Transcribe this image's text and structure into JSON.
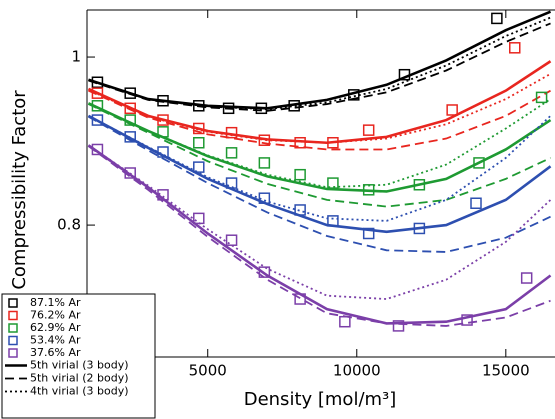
{
  "chart_data": {
    "type": "line",
    "x_label": "Density [mol/m³]",
    "y_label": "Compressibility Factor",
    "xlim": [
      950,
      16650
    ],
    "ylim": [
      0.643,
      1.056
    ],
    "xticks": [
      5000,
      10000,
      15000
    ],
    "yticks": [
      0.8,
      1
    ],
    "x": [
      1000,
      3000,
      5000,
      7000,
      9000,
      11000,
      13000,
      15000,
      16500
    ],
    "models": [
      {
        "name": "5th virial (3 body)",
        "dash": "solid"
      },
      {
        "name": "5th virial (2 body)",
        "dash": "dashed"
      },
      {
        "name": "4th virial (3 body)",
        "dash": "dotted"
      }
    ],
    "series": [
      {
        "name": "87.1% Ar",
        "color": "#000000",
        "marker_x": [
          1300,
          2400,
          3500,
          4700,
          5700,
          6800,
          7900,
          9900,
          11600,
          14700
        ],
        "marker_values": [
          0.97,
          0.957,
          0.948,
          0.942,
          0.939,
          0.939,
          0.942,
          0.955,
          0.979,
          1.046
        ],
        "curves": [
          [
            0.973,
            0.95,
            0.942,
            0.939,
            0.949,
            0.967,
            0.996,
            1.032,
            1.054
          ],
          [
            0.972,
            0.949,
            0.94,
            0.936,
            0.944,
            0.958,
            0.984,
            1.018,
            1.04
          ],
          [
            0.973,
            0.95,
            0.941,
            0.938,
            0.946,
            0.962,
            0.99,
            1.025,
            1.047
          ]
        ]
      },
      {
        "name": "76.2% Ar",
        "color": "#e8261f",
        "marker_x": [
          1300,
          2400,
          3500,
          4700,
          5800,
          6900,
          8100,
          9200,
          10400,
          13200,
          15300
        ],
        "marker_values": [
          0.957,
          0.939,
          0.925,
          0.915,
          0.91,
          0.901,
          0.898,
          0.898,
          0.913,
          0.937,
          1.011
        ],
        "curves": [
          [
            0.962,
            0.93,
            0.912,
            0.902,
            0.898,
            0.905,
            0.925,
            0.96,
            0.995
          ],
          [
            0.96,
            0.928,
            0.908,
            0.897,
            0.89,
            0.89,
            0.903,
            0.93,
            0.96
          ],
          [
            0.961,
            0.929,
            0.911,
            0.901,
            0.898,
            0.903,
            0.92,
            0.95,
            0.98
          ]
        ]
      },
      {
        "name": "62.9% Ar",
        "color": "#1e9a32",
        "marker_x": [
          1300,
          2400,
          3500,
          4700,
          5800,
          6900,
          8100,
          9200,
          10400,
          12100,
          14100,
          16200
        ],
        "marker_values": [
          0.942,
          0.925,
          0.911,
          0.898,
          0.886,
          0.874,
          0.86,
          0.85,
          0.842,
          0.848,
          0.874,
          0.952
        ],
        "curves": [
          [
            0.945,
            0.912,
            0.882,
            0.858,
            0.843,
            0.84,
            0.855,
            0.89,
            0.925
          ],
          [
            0.944,
            0.91,
            0.876,
            0.849,
            0.83,
            0.822,
            0.83,
            0.855,
            0.88
          ],
          [
            0.945,
            0.912,
            0.883,
            0.86,
            0.845,
            0.848,
            0.872,
            0.915,
            0.95
          ]
        ]
      },
      {
        "name": "53.4% Ar",
        "color": "#2d4fb0",
        "marker_x": [
          1300,
          2400,
          3500,
          4700,
          5800,
          6900,
          8100,
          9200,
          10400,
          12100,
          14000
        ],
        "marker_values": [
          0.925,
          0.905,
          0.887,
          0.869,
          0.85,
          0.832,
          0.818,
          0.805,
          0.79,
          0.796,
          0.826
        ],
        "curves": [
          [
            0.93,
            0.892,
            0.855,
            0.825,
            0.8,
            0.792,
            0.8,
            0.83,
            0.87
          ],
          [
            0.929,
            0.889,
            0.85,
            0.815,
            0.787,
            0.77,
            0.768,
            0.785,
            0.81
          ],
          [
            0.93,
            0.893,
            0.857,
            0.828,
            0.808,
            0.805,
            0.83,
            0.88,
            0.93
          ]
        ]
      },
      {
        "name": "37.6% Ar",
        "color": "#7b3fa8",
        "marker_x": [
          1300,
          2400,
          3500,
          4700,
          5800,
          6900,
          8100,
          9600,
          11400,
          13700,
          15700
        ],
        "marker_values": [
          0.89,
          0.862,
          0.836,
          0.808,
          0.782,
          0.744,
          0.712,
          0.685,
          0.68,
          0.687,
          0.737
        ],
        "curves": [
          [
            0.895,
            0.845,
            0.79,
            0.74,
            0.7,
            0.683,
            0.685,
            0.7,
            0.74
          ],
          [
            0.894,
            0.842,
            0.786,
            0.735,
            0.695,
            0.683,
            0.68,
            0.69,
            0.71
          ],
          [
            0.895,
            0.847,
            0.795,
            0.748,
            0.716,
            0.712,
            0.735,
            0.78,
            0.83
          ]
        ]
      }
    ]
  }
}
